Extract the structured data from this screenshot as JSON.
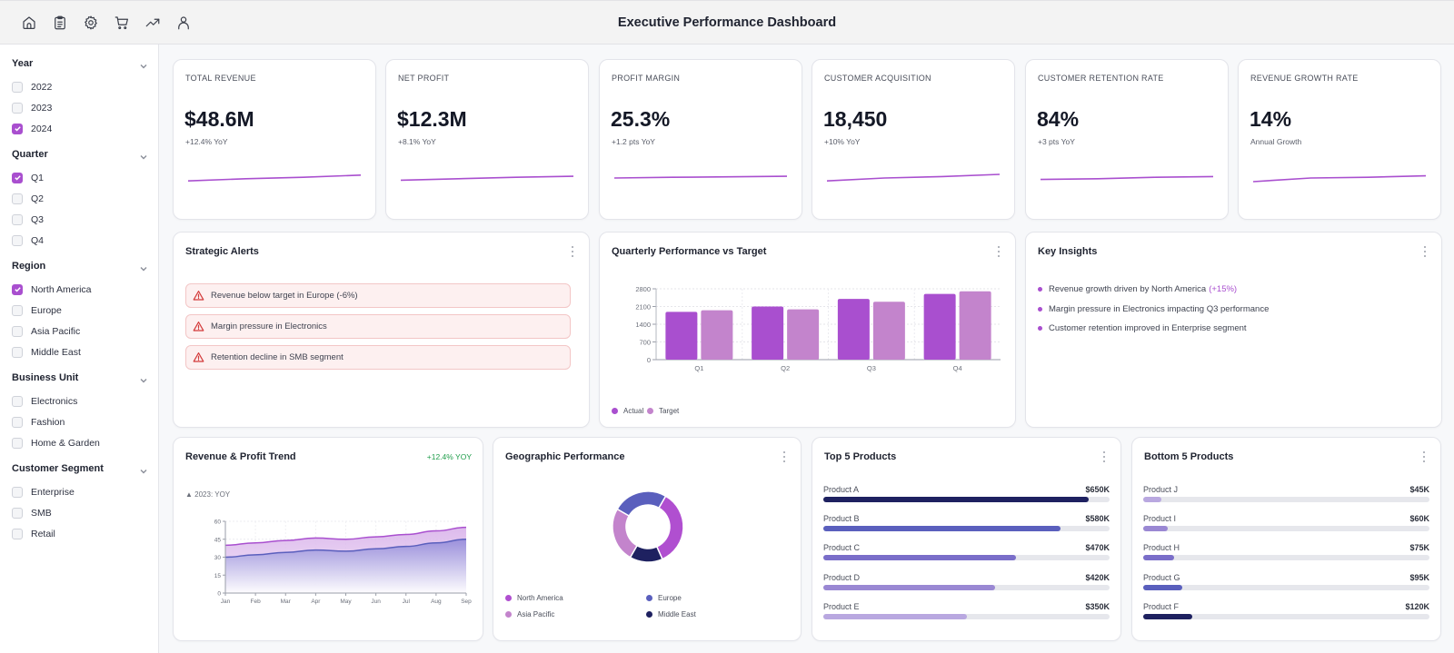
{
  "header": {
    "title": "Executive Performance Dashboard",
    "nav_icons": [
      "home-icon",
      "clipboard-icon",
      "gear-icon",
      "cart-icon",
      "trending-up-icon",
      "user-icon"
    ]
  },
  "sidebar": {
    "groups": [
      {
        "title": "Year",
        "options": [
          {
            "label": "2022",
            "checked": false
          },
          {
            "label": "2023",
            "checked": false
          },
          {
            "label": "2024",
            "checked": true
          }
        ]
      },
      {
        "title": "Quarter",
        "options": [
          {
            "label": "Q1",
            "checked": true
          },
          {
            "label": "Q2",
            "checked": false
          },
          {
            "label": "Q3",
            "checked": false
          },
          {
            "label": "Q4",
            "checked": false
          }
        ]
      },
      {
        "title": "Region",
        "options": [
          {
            "label": "North America",
            "checked": true
          },
          {
            "label": "Europe",
            "checked": false
          },
          {
            "label": "Asia Pacific",
            "checked": false
          },
          {
            "label": "Middle East",
            "checked": false
          }
        ]
      },
      {
        "title": "Business Unit",
        "options": [
          {
            "label": "Electronics",
            "checked": false
          },
          {
            "label": "Fashion",
            "checked": false
          },
          {
            "label": "Home & Garden",
            "checked": false
          }
        ]
      },
      {
        "title": "Customer Segment",
        "options": [
          {
            "label": "Enterprise",
            "checked": false
          },
          {
            "label": "SMB",
            "checked": false
          },
          {
            "label": "Retail",
            "checked": false
          }
        ]
      }
    ]
  },
  "kpis": [
    {
      "label": "Total Revenue",
      "value": "$48.6M",
      "sub": "+12.4% YoY"
    },
    {
      "label": "Net Profit",
      "value": "$12.3M",
      "sub": "+8.1% YoY"
    },
    {
      "label": "Profit Margin",
      "value": "25.3%",
      "sub": "+1.2 pts YoY"
    },
    {
      "label": "Customer Acquisition",
      "value": "18,450",
      "sub": "+10% YoY"
    },
    {
      "label": "Customer Retention Rate",
      "value": "84%",
      "sub": "+3 pts YoY"
    },
    {
      "label": "Revenue Growth Rate",
      "value": "14%",
      "sub": "Annual Growth"
    }
  ],
  "alerts": {
    "title": "Strategic Alerts",
    "items": [
      "Revenue below target in Europe (-6%)",
      "Margin pressure in Electronics",
      "Retention decline in SMB segment"
    ]
  },
  "insights": {
    "title": "Key Insights",
    "items": [
      {
        "text": "Revenue growth driven by North America",
        "highlight": "(+15%)"
      },
      {
        "text": "Margin pressure in Electronics impacting Q3 performance",
        "highlight": ""
      },
      {
        "text": "Customer retention improved in Enterprise segment",
        "highlight": ""
      }
    ]
  },
  "colors": {
    "accent": "#a94fcf",
    "accent_light": "#c384cc",
    "europe": "#5a5fbd",
    "middle_east": "#1e2160",
    "alert_red": "#d33a3a",
    "positive_green": "#1f9d4a"
  },
  "chart_data": [
    {
      "id": "quarterly",
      "type": "bar",
      "title": "Quarterly Performance vs Target",
      "categories": [
        "Q1",
        "Q2",
        "Q3",
        "Q4"
      ],
      "series": [
        {
          "name": "Actual",
          "color": "#a94fcf",
          "values": [
            1890,
            2100,
            2400,
            2600
          ]
        },
        {
          "name": "Target",
          "color": "#c384cc",
          "values": [
            1950,
            1990,
            2290,
            2700
          ]
        }
      ],
      "yticks": [
        0,
        700,
        1400,
        2100,
        2800
      ],
      "ylim": [
        0,
        2800
      ],
      "grid": true,
      "legend": "bottom-left"
    },
    {
      "id": "trend",
      "type": "area",
      "title": "Revenue & Profit Trend",
      "badge": "+12.4% YOY",
      "note": "▲ 2023: YOY",
      "x": [
        "Jan",
        "Feb",
        "Mar",
        "Apr",
        "May",
        "Jun",
        "Jul",
        "Aug",
        "Sep"
      ],
      "series": [
        {
          "name": "Revenue",
          "color": "#a94fcf",
          "values": [
            40,
            42,
            44,
            46,
            45,
            47,
            49,
            52,
            55
          ]
        },
        {
          "name": "Profit",
          "color": "#5a5fbd",
          "values": [
            30,
            32,
            34,
            36,
            35,
            37,
            39,
            42,
            45
          ]
        }
      ],
      "yticks": [
        0,
        15,
        30,
        45,
        60
      ],
      "ylim": [
        0,
        60
      ],
      "grid": true
    },
    {
      "id": "geo",
      "type": "pie",
      "title": "Geographic Performance",
      "slices": [
        {
          "label": "North America",
          "value": 35,
          "color": "#b04fd0"
        },
        {
          "label": "Middle East",
          "value": 15,
          "color": "#1e2160"
        },
        {
          "label": "Asia Pacific",
          "value": 25,
          "color": "#c384cc"
        },
        {
          "label": "Europe",
          "value": 25,
          "color": "#5a5fbd"
        }
      ],
      "legend": "bottom"
    }
  ],
  "top_products": {
    "title": "Top 5 Products",
    "max": 700,
    "items": [
      {
        "name": "Product A",
        "value": 650,
        "label": "$650K",
        "color": "#1e2160"
      },
      {
        "name": "Product B",
        "value": 580,
        "label": "$580K",
        "color": "#5a5fbd"
      },
      {
        "name": "Product C",
        "value": 470,
        "label": "$470K",
        "color": "#7a6ec9"
      },
      {
        "name": "Product D",
        "value": 420,
        "label": "$420K",
        "color": "#9a88d3"
      },
      {
        "name": "Product E",
        "value": 350,
        "label": "$350K",
        "color": "#b9a8e0"
      }
    ]
  },
  "bottom_products": {
    "title": "Bottom 5 Products",
    "max": 700,
    "items": [
      {
        "name": "Product J",
        "value": 45,
        "label": "$45K",
        "color": "#b9a8e0"
      },
      {
        "name": "Product I",
        "value": 60,
        "label": "$60K",
        "color": "#9a88d3"
      },
      {
        "name": "Product H",
        "value": 75,
        "label": "$75K",
        "color": "#7a6ec9"
      },
      {
        "name": "Product G",
        "value": 95,
        "label": "$95K",
        "color": "#5a5fbd"
      },
      {
        "name": "Product F",
        "value": 120,
        "label": "$120K",
        "color": "#1e2160"
      }
    ]
  },
  "sparklines": [
    [
      0.3,
      0.45,
      0.55,
      0.7
    ],
    [
      0.35,
      0.45,
      0.55,
      0.62
    ],
    [
      0.5,
      0.55,
      0.58,
      0.62
    ],
    [
      0.3,
      0.5,
      0.6,
      0.75
    ],
    [
      0.4,
      0.45,
      0.55,
      0.6
    ],
    [
      0.25,
      0.5,
      0.55,
      0.65
    ]
  ]
}
